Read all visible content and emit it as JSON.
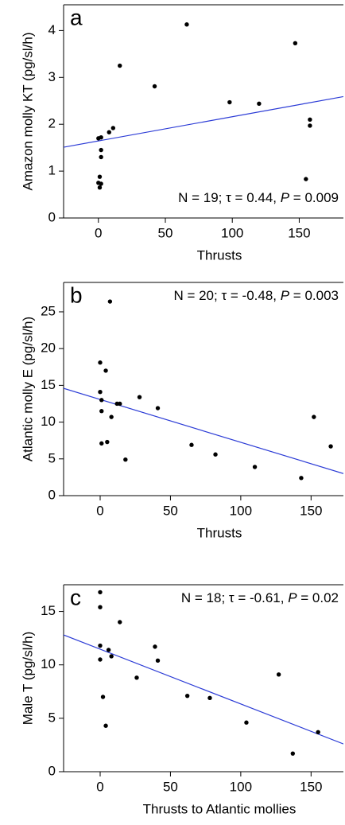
{
  "chart_data": [
    {
      "type": "scatter",
      "panel_label": "a",
      "xlabel": "Thrusts",
      "ylabel": "Amazon molly KT (pg/sl/h)",
      "x": [
        0,
        1,
        2,
        1,
        2,
        2,
        0,
        2,
        8,
        11,
        16,
        42,
        66,
        98,
        120,
        147,
        155,
        158,
        158
      ],
      "y": [
        0.75,
        0.65,
        0.73,
        0.88,
        1.3,
        1.45,
        1.7,
        1.72,
        1.83,
        1.92,
        3.25,
        2.81,
        4.13,
        2.47,
        2.44,
        3.73,
        0.83,
        1.97,
        2.1
      ],
      "color": "#000000",
      "fit": {
        "x": [
          -26,
          183
        ],
        "y": [
          1.51,
          2.59
        ],
        "color": "#2b3bd6"
      },
      "xlim": [
        -26,
        183
      ],
      "ylim": [
        0,
        4.55
      ],
      "xticks": [
        0,
        50,
        100,
        150
      ],
      "yticks": [
        0,
        1,
        2,
        3,
        4
      ],
      "annotation": [
        {
          "text": "N = 19; τ = 0.44, "
        },
        {
          "text": "P",
          "italic": true
        },
        {
          "text": " = 0.009"
        }
      ],
      "annotation_position": "bottom-right"
    },
    {
      "type": "scatter",
      "panel_label": "b",
      "xlabel": "Thrusts",
      "ylabel": "Atlantic molly E (pg/sl/h)",
      "x": [
        0,
        0,
        1,
        1,
        1,
        4,
        5,
        8,
        12,
        14,
        7,
        18,
        28,
        41,
        65,
        82,
        110,
        143,
        152,
        164
      ],
      "y": [
        18.1,
        14.1,
        13.0,
        11.5,
        7.1,
        17.0,
        7.3,
        10.7,
        12.5,
        12.5,
        26.4,
        4.9,
        13.4,
        11.9,
        6.9,
        5.6,
        3.9,
        2.4,
        10.7,
        6.7
      ],
      "color": "#000000",
      "fit": {
        "x": [
          -26,
          173
        ],
        "y": [
          14.6,
          3.0
        ],
        "color": "#2b3bd6"
      },
      "xlim": [
        -26,
        173
      ],
      "ylim": [
        0,
        29
      ],
      "xticks": [
        0,
        50,
        100,
        150
      ],
      "yticks": [
        0,
        5,
        10,
        15,
        20,
        25
      ],
      "annotation": [
        {
          "text": "N = 20; τ = -0.48, "
        },
        {
          "text": "P",
          "italic": true
        },
        {
          "text": " = 0.003"
        }
      ],
      "annotation_position": "top-right"
    },
    {
      "type": "scatter",
      "panel_label": "c",
      "xlabel": "Thrusts to Atlantic mollies",
      "ylabel": "Male T (pg/sl/h)",
      "x": [
        0,
        0,
        0,
        0,
        2,
        4,
        6,
        8,
        14,
        26,
        39,
        41,
        62,
        78,
        104,
        127,
        137,
        155
      ],
      "y": [
        16.8,
        15.4,
        11.8,
        10.5,
        7.0,
        4.3,
        11.4,
        10.8,
        14.0,
        8.8,
        11.7,
        10.4,
        7.1,
        6.9,
        4.6,
        9.1,
        1.7,
        3.7
      ],
      "color": "#000000",
      "fit": {
        "x": [
          -26,
          173
        ],
        "y": [
          12.8,
          2.6
        ],
        "color": "#2b3bd6"
      },
      "xlim": [
        -26,
        173
      ],
      "ylim": [
        0,
        17.5
      ],
      "xticks": [
        0,
        50,
        100,
        150
      ],
      "yticks": [
        0,
        5,
        10,
        15
      ],
      "annotation": [
        {
          "text": "N = 18; τ = -0.61, "
        },
        {
          "text": "P",
          "italic": true
        },
        {
          "text": " = 0.02"
        }
      ],
      "annotation_position": "top-right"
    }
  ]
}
